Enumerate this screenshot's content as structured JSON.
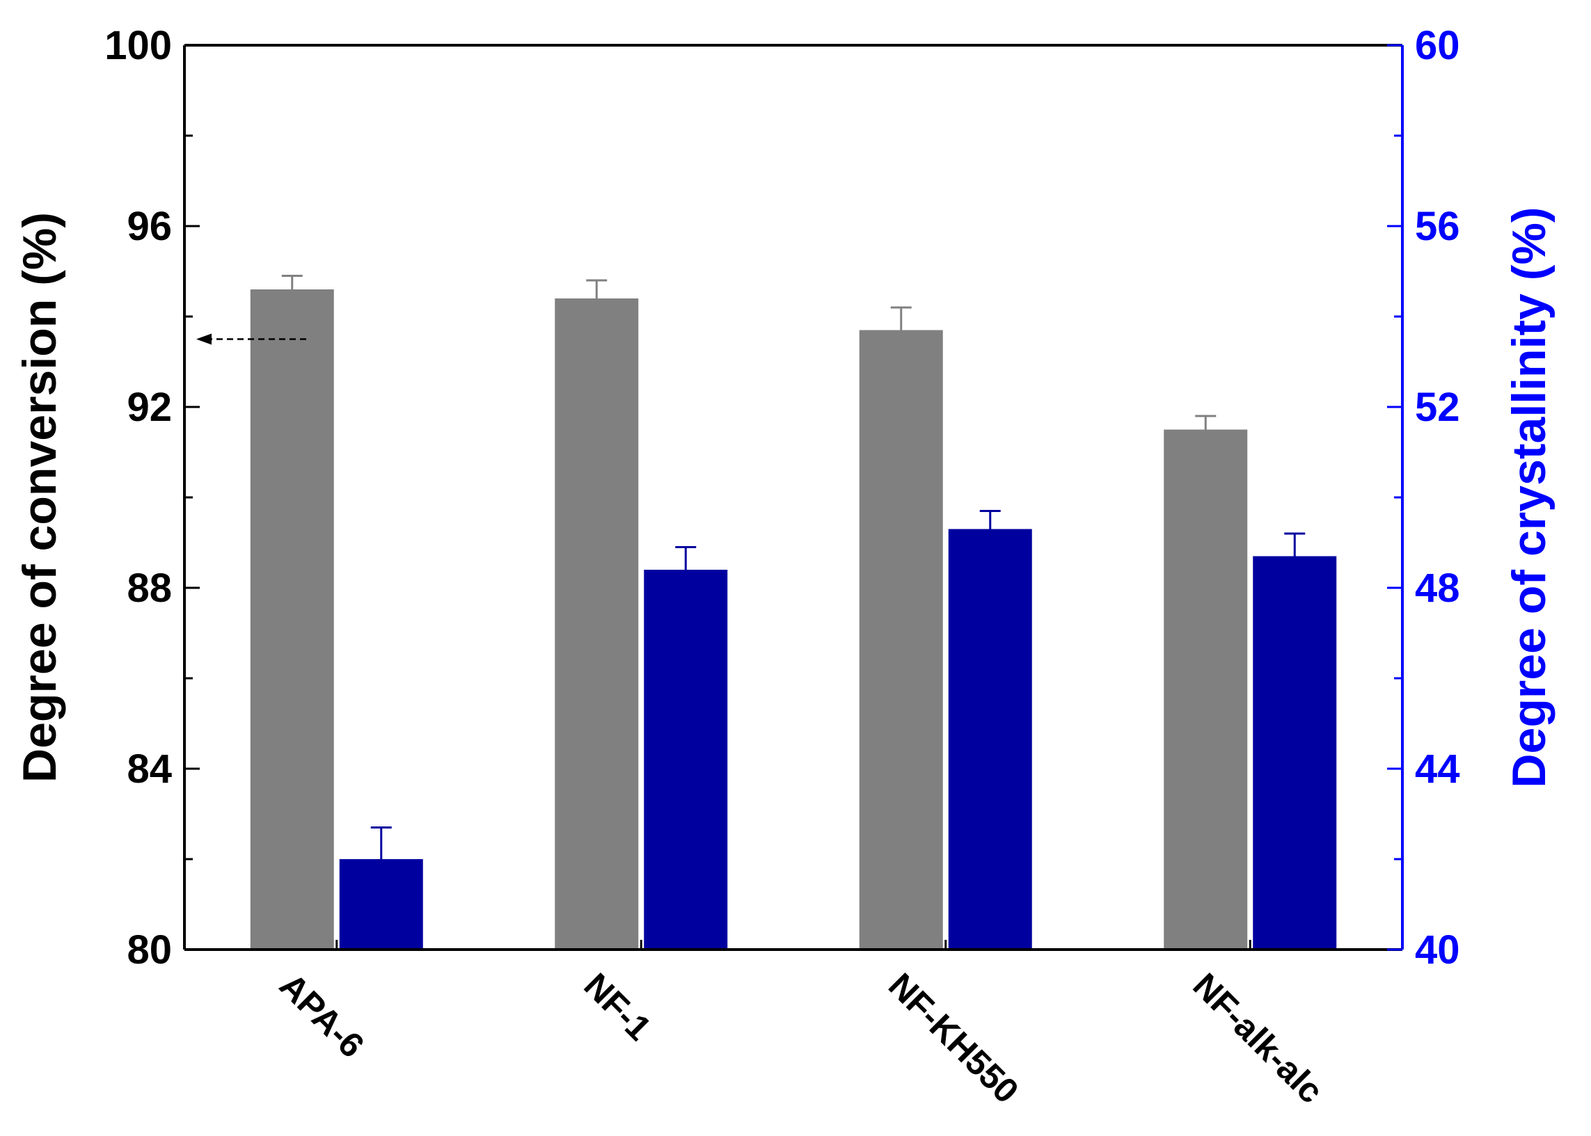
{
  "chart_data": {
    "type": "bar",
    "categories": [
      "APA-6",
      "NF-1",
      "NF-KH550",
      "NF-alk-alc"
    ],
    "series": [
      {
        "axis": "left",
        "color": "#808080",
        "values": [
          94.6,
          94.4,
          93.7,
          91.5
        ],
        "errors": [
          0.3,
          0.4,
          0.5,
          0.3
        ]
      },
      {
        "axis": "right",
        "color": "#00009f",
        "values": [
          42.0,
          48.4,
          49.3,
          48.7
        ],
        "errors": [
          0.7,
          0.5,
          0.4,
          0.5
        ]
      }
    ],
    "ylabel": "Degree of conversion (%)",
    "ylabel_right": "Degree of crystallinity (%)",
    "ylim": [
      80,
      100
    ],
    "ylim_right": [
      40,
      60
    ],
    "yticks": [
      "80",
      "84",
      "88",
      "92",
      "96",
      "100"
    ],
    "yticks_right": [
      "40",
      "44",
      "48",
      "52",
      "56",
      "60"
    ],
    "left_axis_color": "#000000",
    "right_axis_color": "#0000ff",
    "annotation": {
      "type": "dashed-arrow",
      "points_to": "left-axis",
      "at_value": 93.5
    },
    "grid": false
  }
}
